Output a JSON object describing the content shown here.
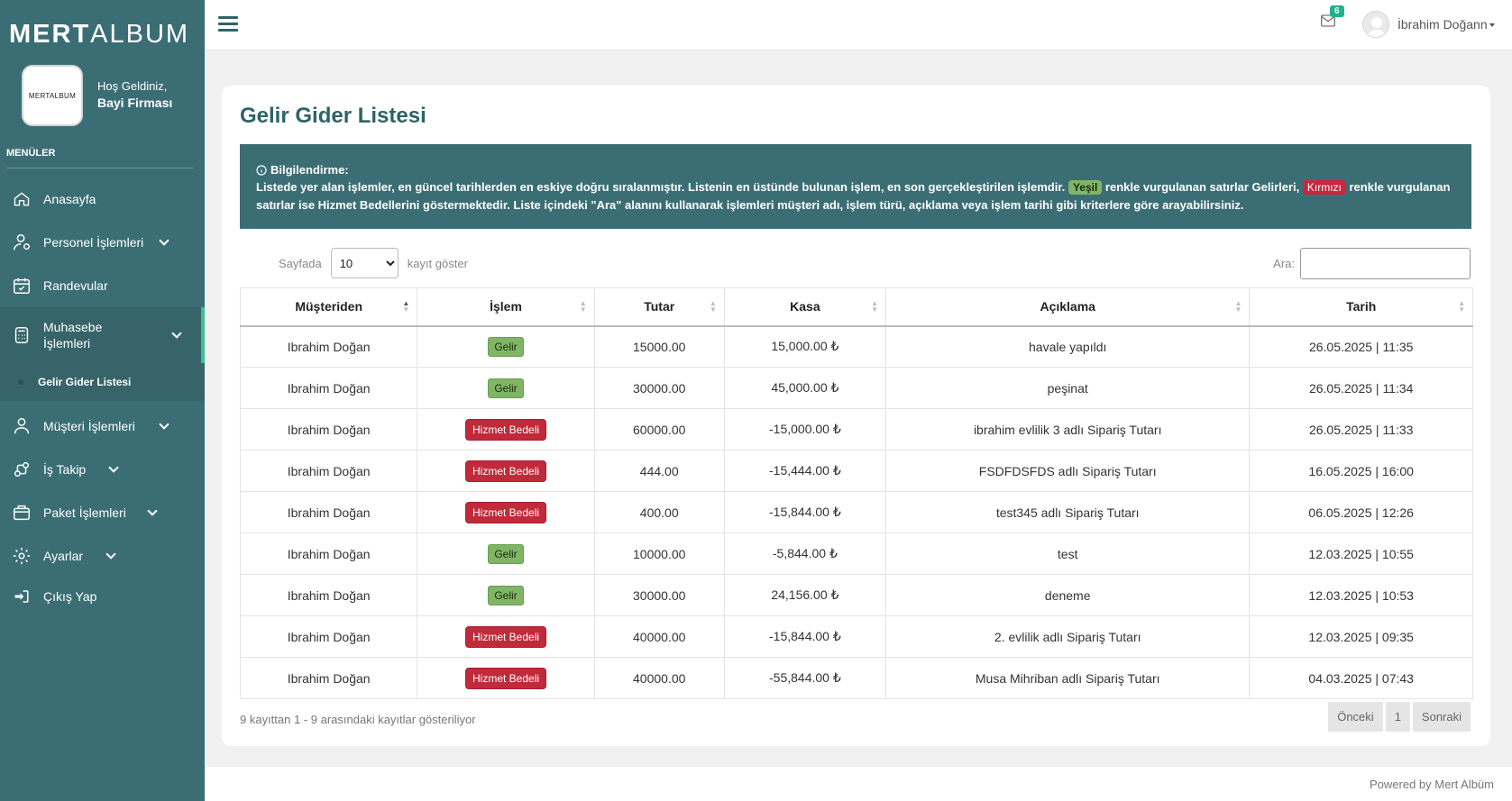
{
  "brand": {
    "part1": "MERT",
    "part2": "ALBUM"
  },
  "logo_text": "MERTALBUM",
  "welcome": {
    "hello": "Hoş Geldiniz,",
    "firm": "Bayi Firması"
  },
  "menu_title": "MENÜLER",
  "nav": {
    "home": "Anasayfa",
    "staff": "Personel İşlemleri",
    "appointments": "Randevular",
    "accounting": "Muhasebe İşlemleri",
    "income_list": "Gelir Gider Listesi",
    "customers": "Müşteri İşlemleri",
    "tracking": "İş Takip",
    "packages": "Paket İşlemleri",
    "settings": "Ayarlar",
    "logout": "Çıkış Yap"
  },
  "topbar": {
    "mail_count": "6",
    "username": "İbrahim Doğann"
  },
  "page_title": "Gelir Gider Listesi",
  "info": {
    "heading": "Bilgilendirme:",
    "text1": "Listede yer alan işlemler, en güncel tarihlerden en eskiye doğru sıralanmıştır. Listenin en üstünde bulunan işlem, en son gerçekleştirilen işlemdir.",
    "green_label": "Yeşil",
    "text2": "renkle vurgulanan satırlar",
    "gelirleri": "Gelirleri,",
    "red_label": "Kırmızı",
    "text3": "renkle vurgulanan satırlar ise",
    "hizmet": "Hizmet Bedellerini",
    "text4": "göstermektedir. Liste içindeki \"Ara\" alanını kullanarak işlemleri müşteri adı, işlem türü, açıklama veya işlem tarihi gibi kriterlere göre arayabilirsiniz."
  },
  "controls": {
    "per_page_prefix": "Sayfada",
    "per_page_value": "10",
    "per_page_suffix": "kayıt göster",
    "search_label": "Ara:"
  },
  "table": {
    "headers": [
      "Müşteriden",
      "İşlem",
      "Tutar",
      "Kasa",
      "Açıklama",
      "Tarih"
    ],
    "rows": [
      {
        "customer": "Ibrahim Doğan",
        "type": "Gelir",
        "amount": "15000.00",
        "balance": "15,000.00 ₺",
        "desc": "havale yapıldı",
        "date": "26.05.2025 | 11:35"
      },
      {
        "customer": "Ibrahim Doğan",
        "type": "Gelir",
        "amount": "30000.00",
        "balance": "45,000.00 ₺",
        "desc": "peşinat",
        "date": "26.05.2025 | 11:34"
      },
      {
        "customer": "Ibrahim Doğan",
        "type": "Hizmet Bedeli",
        "amount": "60000.00",
        "balance": "-15,000.00 ₺",
        "desc": "ibrahim evlilik 3 adlı Sipariş Tutarı",
        "date": "26.05.2025 | 11:33"
      },
      {
        "customer": "Ibrahim Doğan",
        "type": "Hizmet Bedeli",
        "amount": "444.00",
        "balance": "-15,444.00 ₺",
        "desc": "FSDFDSFDS adlı Sipariş Tutarı",
        "date": "16.05.2025 | 16:00"
      },
      {
        "customer": "Ibrahim Doğan",
        "type": "Hizmet Bedeli",
        "amount": "400.00",
        "balance": "-15,844.00 ₺",
        "desc": "test345 adlı Sipariş Tutarı",
        "date": "06.05.2025 | 12:26"
      },
      {
        "customer": "Ibrahim Doğan",
        "type": "Gelir",
        "amount": "10000.00",
        "balance": "-5,844.00 ₺",
        "desc": "test",
        "date": "12.03.2025 | 10:55"
      },
      {
        "customer": "Ibrahim Doğan",
        "type": "Gelir",
        "amount": "30000.00",
        "balance": "24,156.00 ₺",
        "desc": "deneme",
        "date": "12.03.2025 | 10:53"
      },
      {
        "customer": "Ibrahim Doğan",
        "type": "Hizmet Bedeli",
        "amount": "40000.00",
        "balance": "-15,844.00 ₺",
        "desc": "2. evlilik adlı Sipariş Tutarı",
        "date": "12.03.2025 | 09:35"
      },
      {
        "customer": "Ibrahim Doğan",
        "type": "Hizmet Bedeli",
        "amount": "40000.00",
        "balance": "-55,844.00 ₺",
        "desc": "Musa Mihriban adlı Sipariş Tutarı",
        "date": "04.03.2025 | 07:43"
      }
    ]
  },
  "summary": "9 kayıttan 1 - 9 arasındaki kayıtlar gösteriliyor",
  "pager": {
    "prev": "Önceki",
    "page": "1",
    "next": "Sonraki"
  },
  "footer": "Powered by Mert Albüm",
  "colors": {
    "sidebar": "#3b6e74",
    "accent": "#3fbf93",
    "gelir": "#7fb565",
    "hizmet": "#c12a3a"
  }
}
